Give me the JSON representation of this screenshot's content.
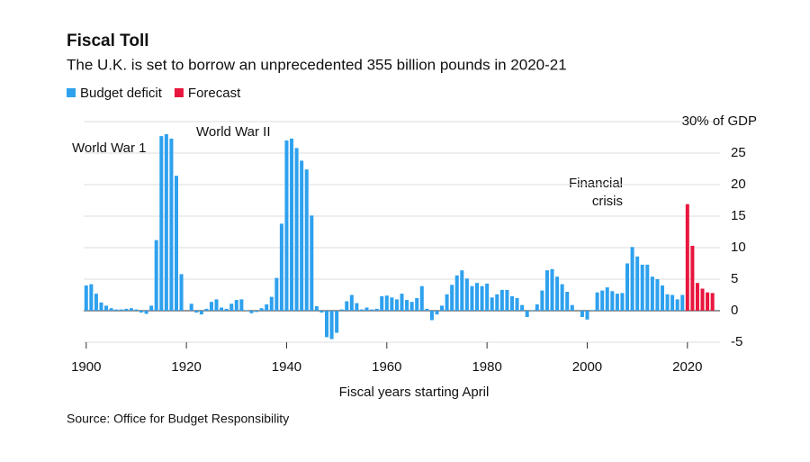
{
  "chart_data": {
    "type": "bar",
    "title": "Fiscal Toll",
    "subtitle": "The U.K. is set to borrow an unprecedented 355 billion pounds in 2020-21",
    "x_label": "Fiscal years starting April",
    "source": "Source: Office for Budget Responsibility",
    "annotations": [
      "World War 1",
      "World War II",
      "Financial",
      "crisis"
    ],
    "xlim": [
      1899.5,
      2026.5
    ],
    "xticks": [
      1900,
      1920,
      1940,
      1960,
      1980,
      2000,
      2020
    ],
    "ylim": [
      -5,
      30
    ],
    "yticks": [
      -5,
      0,
      5,
      10,
      15,
      20,
      25,
      {
        "value": 30,
        "label": "30% of GDP"
      }
    ],
    "grid": true,
    "series": [
      {
        "name": "Budget deficit",
        "color": "#2ea1ee",
        "x": [
          1900,
          1901,
          1902,
          1903,
          1904,
          1905,
          1906,
          1907,
          1908,
          1909,
          1910,
          1911,
          1912,
          1913,
          1914,
          1915,
          1916,
          1917,
          1918,
          1919,
          1920,
          1921,
          1922,
          1923,
          1924,
          1925,
          1926,
          1927,
          1928,
          1929,
          1930,
          1931,
          1932,
          1933,
          1934,
          1935,
          1936,
          1937,
          1938,
          1939,
          1940,
          1941,
          1942,
          1943,
          1944,
          1945,
          1946,
          1947,
          1948,
          1949,
          1950,
          1951,
          1952,
          1953,
          1954,
          1955,
          1956,
          1957,
          1958,
          1959,
          1960,
          1961,
          1962,
          1963,
          1964,
          1965,
          1966,
          1967,
          1968,
          1969,
          1970,
          1971,
          1972,
          1973,
          1974,
          1975,
          1976,
          1977,
          1978,
          1979,
          1980,
          1981,
          1982,
          1983,
          1984,
          1985,
          1986,
          1987,
          1988,
          1989,
          1990,
          1991,
          1992,
          1993,
          1994,
          1995,
          1996,
          1997,
          1998,
          1999,
          2000,
          2001,
          2002,
          2003,
          2004,
          2005,
          2006,
          2007,
          2008,
          2009,
          2010,
          2011,
          2012,
          2013,
          2014,
          2015,
          2016,
          2017,
          2018,
          2019
        ],
        "values": [
          4,
          4.2,
          2.7,
          1.3,
          0.8,
          0.4,
          0.2,
          0.2,
          0.3,
          0.4,
          0.2,
          -0.3,
          -0.5,
          0.8,
          11.2,
          27.7,
          28,
          27.3,
          21.4,
          5.8,
          0,
          1.1,
          -0.3,
          -0.6,
          0.3,
          1.4,
          1.8,
          0.5,
          0.3,
          1.1,
          1.7,
          1.8,
          0.1,
          -0.4,
          -0.2,
          0.4,
          1,
          2.2,
          5.2,
          13.8,
          27,
          27.3,
          25.8,
          23.8,
          22.4,
          15.1,
          0.7,
          -0.3,
          -4.2,
          -4.5,
          -3.5,
          0.2,
          1.5,
          2.5,
          1.2,
          0.2,
          0.5,
          0.2,
          0.3,
          2.3,
          2.4,
          2.1,
          1.8,
          2.7,
          1.7,
          1.4,
          2,
          3.9,
          0.3,
          -1.5,
          -0.6,
          0.8,
          2.6,
          4.1,
          5.6,
          6.4,
          5.1,
          3.9,
          4.4,
          3.9,
          4.3,
          2.1,
          2.6,
          3.3,
          3.3,
          2.3,
          2,
          0.9,
          -1,
          0.1,
          1,
          3.2,
          6.4,
          6.6,
          5.4,
          4.2,
          3,
          0.9,
          0,
          -1,
          -1.4,
          0.1,
          2.9,
          3.2,
          3.7,
          3.1,
          2.7,
          2.8,
          7.5,
          10.1,
          8.6,
          7.3,
          7.3,
          5.4,
          5,
          4,
          2.6,
          2.5,
          1.8,
          2.5
        ]
      },
      {
        "name": "Forecast",
        "color": "#e8163d",
        "x": [
          2020,
          2021,
          2022,
          2023,
          2024,
          2025
        ],
        "values": [
          16.9,
          10.3,
          4.4,
          3.5,
          2.9,
          2.8
        ]
      }
    ]
  }
}
